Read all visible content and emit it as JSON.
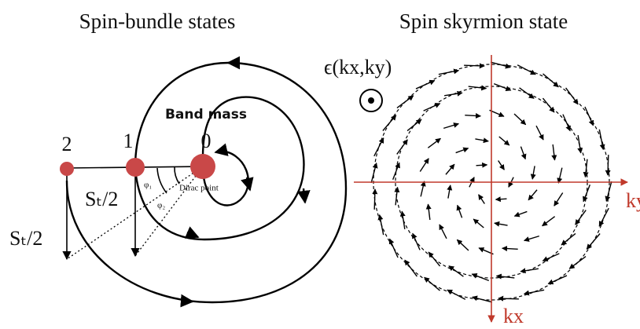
{
  "left": {
    "title": "Spin-bundle states",
    "band_mass": "Band mass",
    "points": [
      "2",
      "1",
      "0"
    ],
    "spin_labels": [
      "Sₜ/2",
      "Sₜ/2"
    ],
    "angles": [
      "φ₁",
      "φ₂"
    ],
    "dirac": "Dirac point"
  },
  "right": {
    "title": "Spin skyrmion state",
    "energy": "ϵ(kx,ky)",
    "ky": "ky",
    "kx": "kx"
  }
}
